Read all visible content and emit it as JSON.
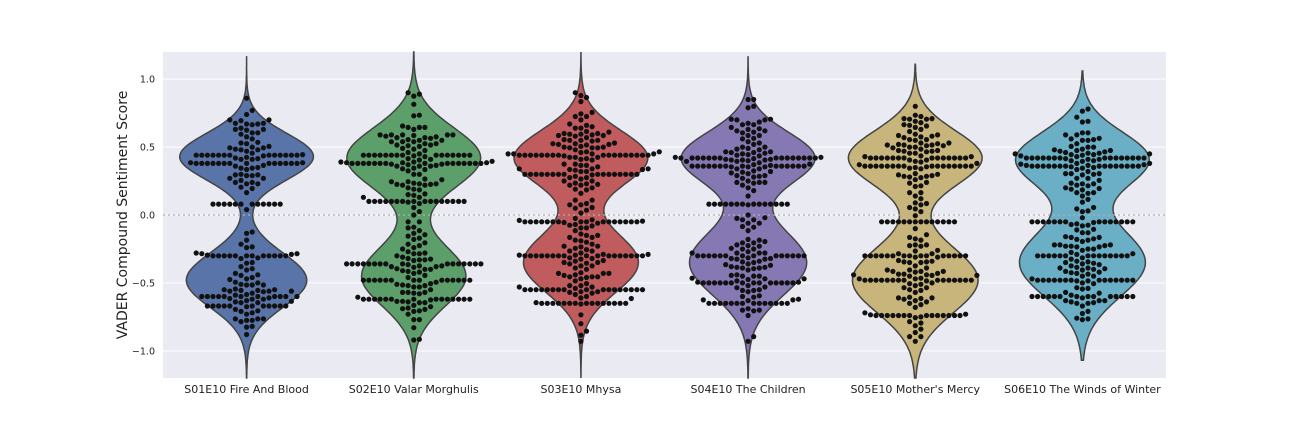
{
  "chart_data": {
    "type": "violin",
    "ylabel": "VADER Compound Sentiment Score",
    "ylim": [
      -1.2,
      1.2
    ],
    "yticks": [
      {
        "value": 1.0,
        "label": "1.0"
      },
      {
        "value": 0.5,
        "label": "0.5"
      },
      {
        "value": 0.0,
        "label": "0.0"
      },
      {
        "value": -0.5,
        "label": "−0.5"
      },
      {
        "value": -1.0,
        "label": "−1.0"
      }
    ],
    "grid": true,
    "reference_line": 0.0,
    "point_color": "#111111",
    "categories": [
      "S01E10 Fire And Blood",
      "S02E10 Valar Morghulis",
      "S03E10 Mhysa",
      "S04E10 The Children",
      "S05E10 Mother's Mercy",
      "S06E10 The Winds of Winter"
    ],
    "series": [
      {
        "color": "#5874a8",
        "range": [
          -1.2,
          1.17
        ],
        "modes": [
          {
            "center": 0.43,
            "sd": 0.17,
            "w": 1.0
          },
          {
            "center": -0.48,
            "sd": 0.2,
            "w": 0.9
          }
        ],
        "points": {
          "n": 200,
          "min": -0.88,
          "max": 0.86,
          "clusters": [
            0.44,
            0.38,
            0.08,
            -0.3,
            -0.6,
            -0.67
          ]
        }
      },
      {
        "color": "#5c9f6a",
        "range": [
          -1.2,
          1.2
        ],
        "modes": [
          {
            "center": 0.42,
            "sd": 0.22,
            "w": 1.0
          },
          {
            "center": -0.45,
            "sd": 0.22,
            "w": 0.78
          }
        ],
        "points": {
          "n": 250,
          "min": -0.92,
          "max": 0.9,
          "clusters": [
            0.44,
            0.38,
            0.1,
            -0.36,
            -0.48,
            -0.62
          ]
        }
      },
      {
        "color": "#c05b5e",
        "range": [
          -1.2,
          1.2
        ],
        "modes": [
          {
            "center": 0.42,
            "sd": 0.2,
            "w": 1.0
          },
          {
            "center": -0.35,
            "sd": 0.22,
            "w": 0.86
          }
        ],
        "points": {
          "n": 270,
          "min": -0.93,
          "max": 0.9,
          "clusters": [
            0.44,
            0.3,
            -0.05,
            -0.3,
            -0.55,
            -0.65
          ]
        }
      },
      {
        "color": "#8678b2",
        "range": [
          -1.2,
          1.17
        ],
        "modes": [
          {
            "center": 0.42,
            "sd": 0.19,
            "w": 1.0
          },
          {
            "center": -0.35,
            "sd": 0.24,
            "w": 0.88
          }
        ],
        "points": {
          "n": 240,
          "min": -0.93,
          "max": 0.85,
          "clusters": [
            0.42,
            0.36,
            0.08,
            -0.3,
            -0.5,
            -0.65
          ]
        }
      },
      {
        "color": "#c8b57c",
        "range": [
          -1.2,
          1.11
        ],
        "modes": [
          {
            "center": 0.42,
            "sd": 0.2,
            "w": 1.0
          },
          {
            "center": -0.48,
            "sd": 0.24,
            "w": 0.94
          }
        ],
        "points": {
          "n": 240,
          "min": -0.93,
          "max": 0.8,
          "clusters": [
            0.42,
            0.36,
            -0.05,
            -0.3,
            -0.48,
            -0.74
          ]
        }
      },
      {
        "color": "#6aafc6",
        "range": [
          -1.07,
          1.06
        ],
        "modes": [
          {
            "center": 0.41,
            "sd": 0.2,
            "w": 1.0
          },
          {
            "center": -0.35,
            "sd": 0.25,
            "w": 0.95
          }
        ],
        "points": {
          "n": 240,
          "min": -0.77,
          "max": 0.78,
          "clusters": [
            0.42,
            0.36,
            -0.05,
            -0.3,
            -0.48,
            -0.6
          ]
        }
      }
    ]
  }
}
